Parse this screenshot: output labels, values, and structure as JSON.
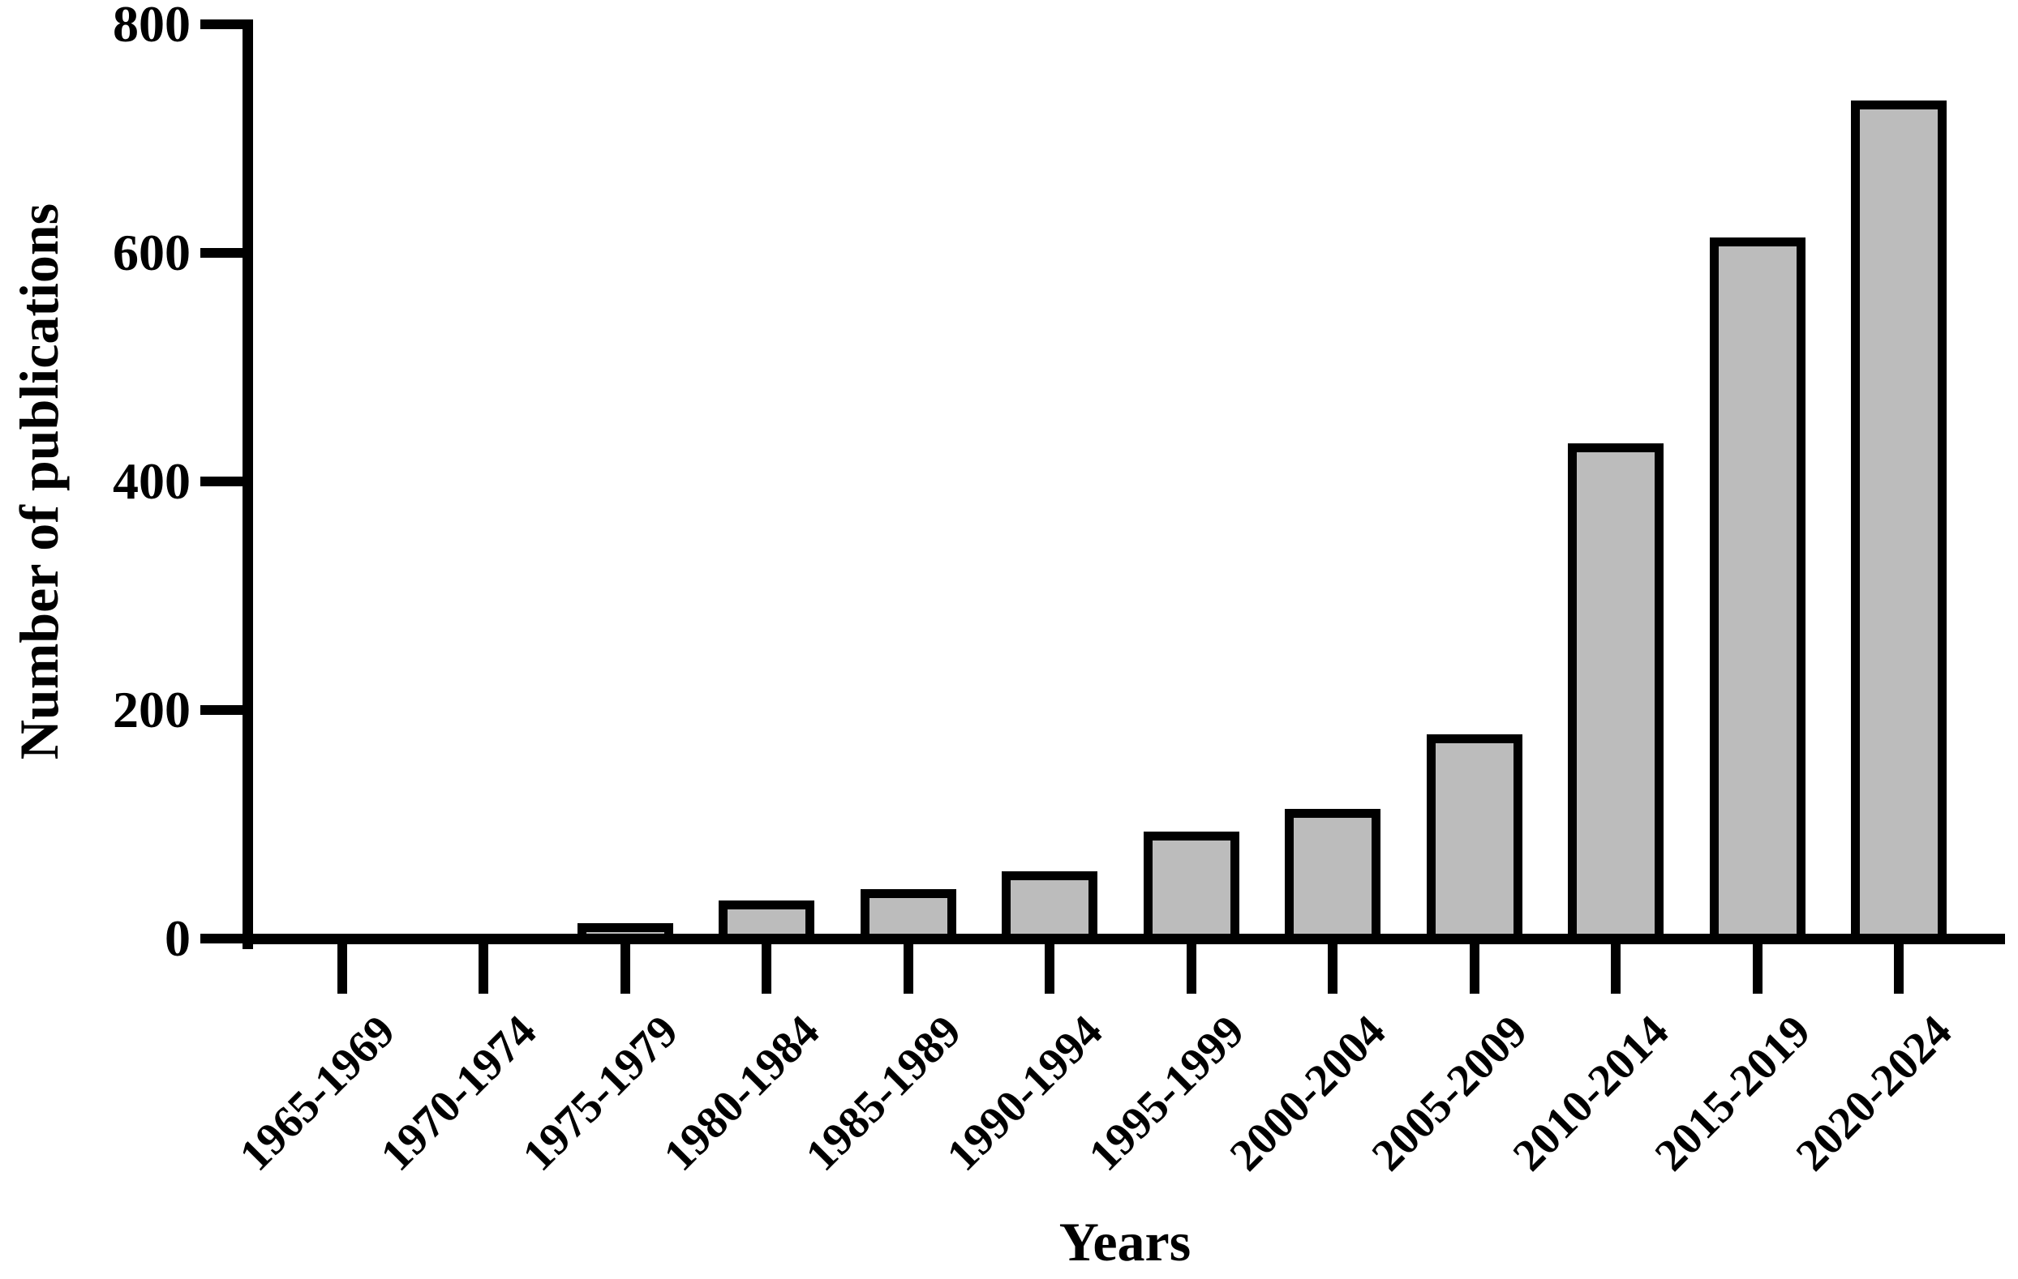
{
  "figure": {
    "background": "#ffffff",
    "axis_color": "#000000",
    "text_color": "#000000"
  },
  "chart_data": {
    "type": "bar",
    "title": "",
    "xlabel": "Years",
    "ylabel": "Number of publications",
    "categories": [
      "1965-1969",
      "1970-1974",
      "1975-1979",
      "1980-1984",
      "1985-1989",
      "1990-1994",
      "1995-1999",
      "2000-2004",
      "2005-2009",
      "2010-2014",
      "2015-2019",
      "2020-2024"
    ],
    "values": [
      0,
      0,
      10,
      30,
      40,
      55,
      90,
      110,
      175,
      430,
      610,
      730
    ],
    "ylim": [
      0,
      800
    ],
    "y_ticks": [
      0,
      200,
      400,
      600,
      800
    ],
    "grid": "off",
    "legend": "none",
    "bar_fill": "#bcbcbc",
    "bar_stroke": "#000000"
  }
}
